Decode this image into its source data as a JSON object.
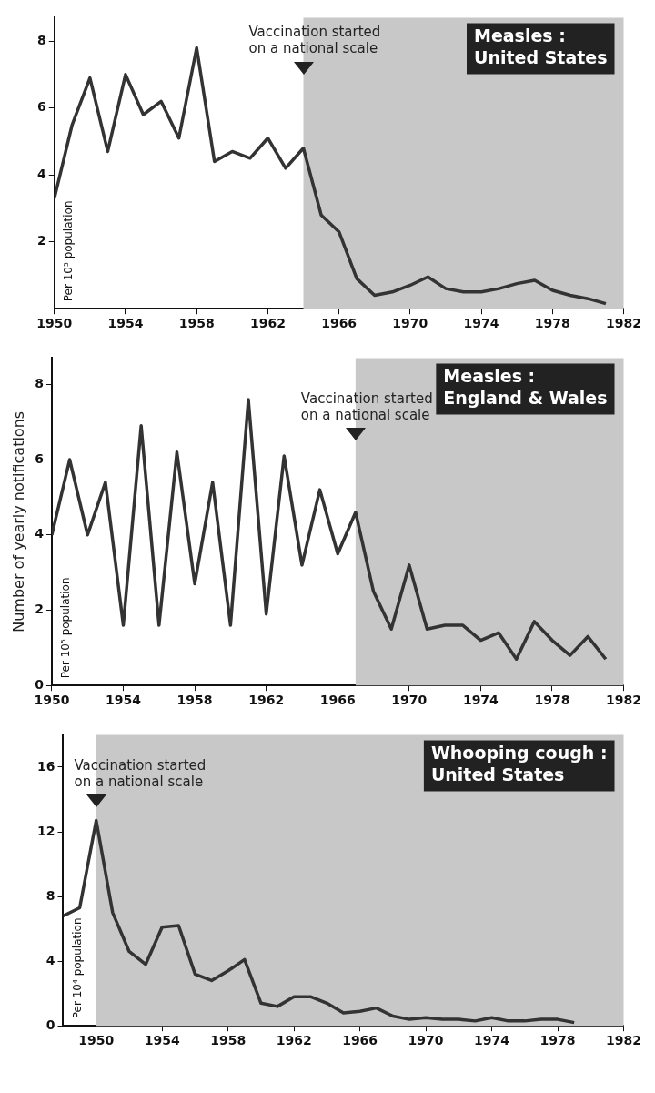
{
  "chart_data": [
    {
      "type": "line",
      "title": "Measles :\nUnited States",
      "xlim": [
        1950,
        1982
      ],
      "xticks": [
        1950,
        1954,
        1958,
        1962,
        1966,
        1970,
        1974,
        1978,
        1982
      ],
      "ylim": [
        0,
        8.7
      ],
      "yticks": [
        2,
        4,
        6,
        8
      ],
      "grid": false,
      "legend": false,
      "marker": "none",
      "line_style": "solid",
      "series": [
        {
          "color": "#333333",
          "x": [
            1950,
            1951,
            1952,
            1953,
            1954,
            1955,
            1956,
            1957,
            1958,
            1959,
            1960,
            1961,
            1962,
            1963,
            1964,
            1965,
            1966,
            1967,
            1968,
            1969,
            1970,
            1971,
            1972,
            1973,
            1974,
            1975,
            1976,
            1977,
            1978,
            1979,
            1980,
            1981
          ],
          "values": [
            3.3,
            5.5,
            6.9,
            4.7,
            7.0,
            5.8,
            6.2,
            5.1,
            7.8,
            4.4,
            4.7,
            4.5,
            5.1,
            4.2,
            4.8,
            2.8,
            2.3,
            0.9,
            0.4,
            0.5,
            0.7,
            0.95,
            0.6,
            0.5,
            0.5,
            0.6,
            0.75,
            0.85,
            0.55,
            0.4,
            0.3,
            0.15
          ]
        }
      ],
      "bands": [
        {
          "axis": "x",
          "from": 1964,
          "to": 1982,
          "color": "#c8c8c8"
        }
      ],
      "annotations": [
        {
          "text": "Vaccination started\non a national scale",
          "x": 1964,
          "y": 7.0
        },
        "Per 10⁵ population"
      ]
    },
    {
      "type": "line",
      "title": "Measles :\nEngland & Wales",
      "ylabel": "Number of yearly notifications",
      "xlim": [
        1950,
        1982
      ],
      "xticks": [
        1950,
        1954,
        1958,
        1962,
        1966,
        1970,
        1974,
        1978,
        1982
      ],
      "ylim": [
        0,
        8.7
      ],
      "yticks": [
        0,
        2,
        4,
        6,
        8
      ],
      "grid": false,
      "legend": false,
      "marker": "none",
      "line_style": "solid",
      "series": [
        {
          "color": "#333333",
          "x": [
            1950,
            1951,
            1952,
            1953,
            1954,
            1955,
            1956,
            1957,
            1958,
            1959,
            1960,
            1961,
            1962,
            1963,
            1964,
            1965,
            1966,
            1967,
            1968,
            1969,
            1970,
            1971,
            1972,
            1973,
            1974,
            1975,
            1976,
            1977,
            1978,
            1979,
            1980,
            1981
          ],
          "values": [
            4.0,
            6.0,
            4.0,
            5.4,
            1.6,
            6.9,
            1.6,
            6.2,
            2.7,
            5.4,
            1.6,
            7.6,
            1.9,
            6.1,
            3.2,
            5.2,
            3.5,
            4.6,
            2.5,
            1.5,
            3.2,
            1.5,
            1.6,
            1.6,
            1.2,
            1.4,
            0.7,
            1.7,
            1.2,
            0.8,
            1.3,
            0.7
          ]
        }
      ],
      "bands": [
        {
          "axis": "x",
          "from": 1967,
          "to": 1982,
          "color": "#c8c8c8"
        }
      ],
      "annotations": [
        {
          "text": "Vaccination started\non a national scale",
          "x": 1967,
          "y": 6.5
        },
        "Per 10⁵ population"
      ]
    },
    {
      "type": "line",
      "title": "Whooping cough :\nUnited States",
      "xlim": [
        1948,
        1982
      ],
      "xticks": [
        1950,
        1954,
        1958,
        1962,
        1966,
        1970,
        1974,
        1978,
        1982
      ],
      "ylim": [
        0,
        18
      ],
      "yticks": [
        0,
        4,
        8,
        12,
        16
      ],
      "grid": false,
      "legend": false,
      "marker": "none",
      "line_style": "solid",
      "series": [
        {
          "color": "#333333",
          "x": [
            1948,
            1949,
            1950,
            1951,
            1952,
            1953,
            1954,
            1955,
            1956,
            1957,
            1958,
            1959,
            1960,
            1961,
            1962,
            1963,
            1964,
            1965,
            1966,
            1967,
            1968,
            1969,
            1970,
            1971,
            1972,
            1973,
            1974,
            1975,
            1976,
            1977,
            1978,
            1979
          ],
          "values": [
            6.8,
            7.3,
            12.7,
            7.0,
            4.6,
            3.8,
            6.1,
            6.2,
            3.2,
            2.8,
            3.4,
            4.1,
            1.4,
            1.2,
            1.8,
            1.8,
            1.4,
            0.8,
            0.9,
            1.1,
            0.6,
            0.4,
            0.5,
            0.4,
            0.4,
            0.3,
            0.5,
            0.3,
            0.3,
            0.4,
            0.4,
            0.2
          ]
        }
      ],
      "bands": [
        {
          "axis": "x",
          "from": 1950,
          "to": 1982,
          "color": "#c8c8c8"
        }
      ],
      "annotations": [
        {
          "text": "Vaccination started\non a national scale",
          "x": 1950,
          "y": 13.5
        },
        "Per 10⁴ population"
      ]
    }
  ]
}
